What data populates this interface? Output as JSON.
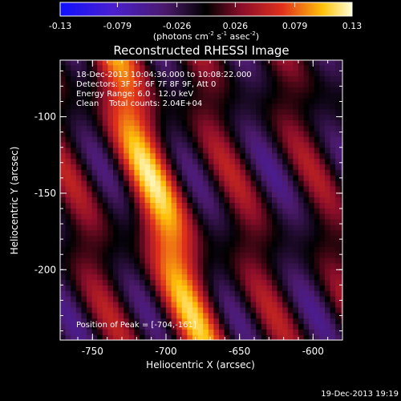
{
  "chart_data": {
    "type": "heatmap",
    "title": "Reconstructed RHESSI Image",
    "colorbar": {
      "ticks": [
        "-0.13",
        "-0.079",
        "-0.026",
        "0.026",
        "0.079",
        "0.13"
      ],
      "unit_base": "(photons cm",
      "unit_sup1": "-2",
      "unit_mid1": " s",
      "unit_sup2": "-1",
      "unit_mid2": " asec",
      "unit_sup3": "-2",
      "unit_end": ")",
      "range": [
        -0.13,
        0.13
      ]
    },
    "annotations": [
      "18-Dec-2013 10:04:36.000 to 10:08:22.000",
      "Detectors: 3F 5F 6F 7F 8F 9F, Att 0",
      "Energy Range: 6.0 - 12.0 keV",
      "Clean    Total counts: 2.04E+04"
    ],
    "peak_label": "Position of Peak = ",
    "peak_value": "[-704,-161]",
    "xlabel": "Heliocentric X (arcsec)",
    "ylabel": "Heliocentric Y (arcsec)",
    "xticks": [
      "-750",
      "-700",
      "-650",
      "-600"
    ],
    "xtick_values": [
      -750,
      -700,
      -650,
      -600
    ],
    "yticks": [
      "-100",
      "-150",
      "-200"
    ],
    "ytick_values": [
      -100,
      -150,
      -200
    ],
    "xlim": [
      -772,
      -580
    ],
    "ylim": [
      -246,
      -63
    ],
    "peak": {
      "x": -704,
      "y": -161,
      "value": 0.13
    },
    "band_directions": {
      "dx_per_dy": -0.32
    }
  },
  "footer": {
    "timestamp": "19-Dec-2013 19:19"
  }
}
